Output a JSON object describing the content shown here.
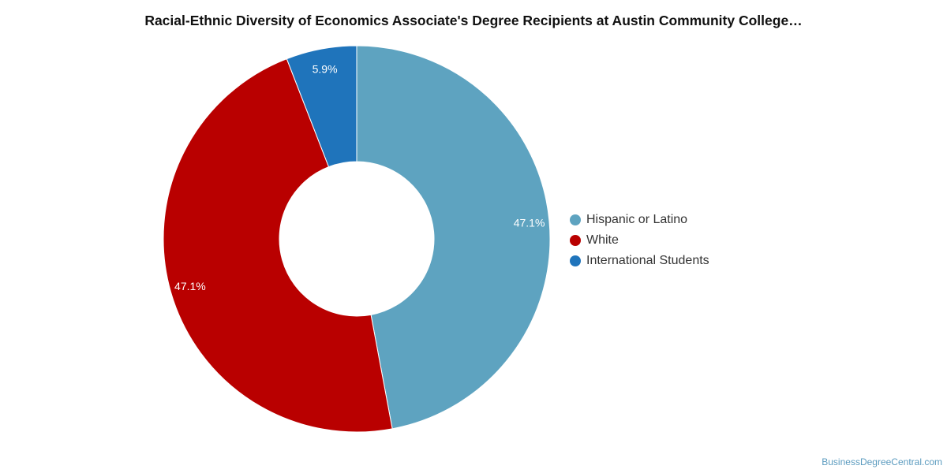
{
  "chart_data": {
    "type": "pie",
    "title": "Racial-Ethnic Diversity of Economics Associate's Degree Recipients at Austin Community College…",
    "donut": true,
    "slices": [
      {
        "label": "Hispanic or Latino",
        "value": 47.1,
        "display": "47.1%",
        "color": "#5ea3c0"
      },
      {
        "label": "White",
        "value": 47.1,
        "display": "47.1%",
        "color": "#b90000"
      },
      {
        "label": "International Students",
        "value": 5.9,
        "display": "5.9%",
        "color": "#1f74bb"
      }
    ],
    "legend_position": "right"
  },
  "footer": {
    "source": "BusinessDegreeCentral.com"
  }
}
